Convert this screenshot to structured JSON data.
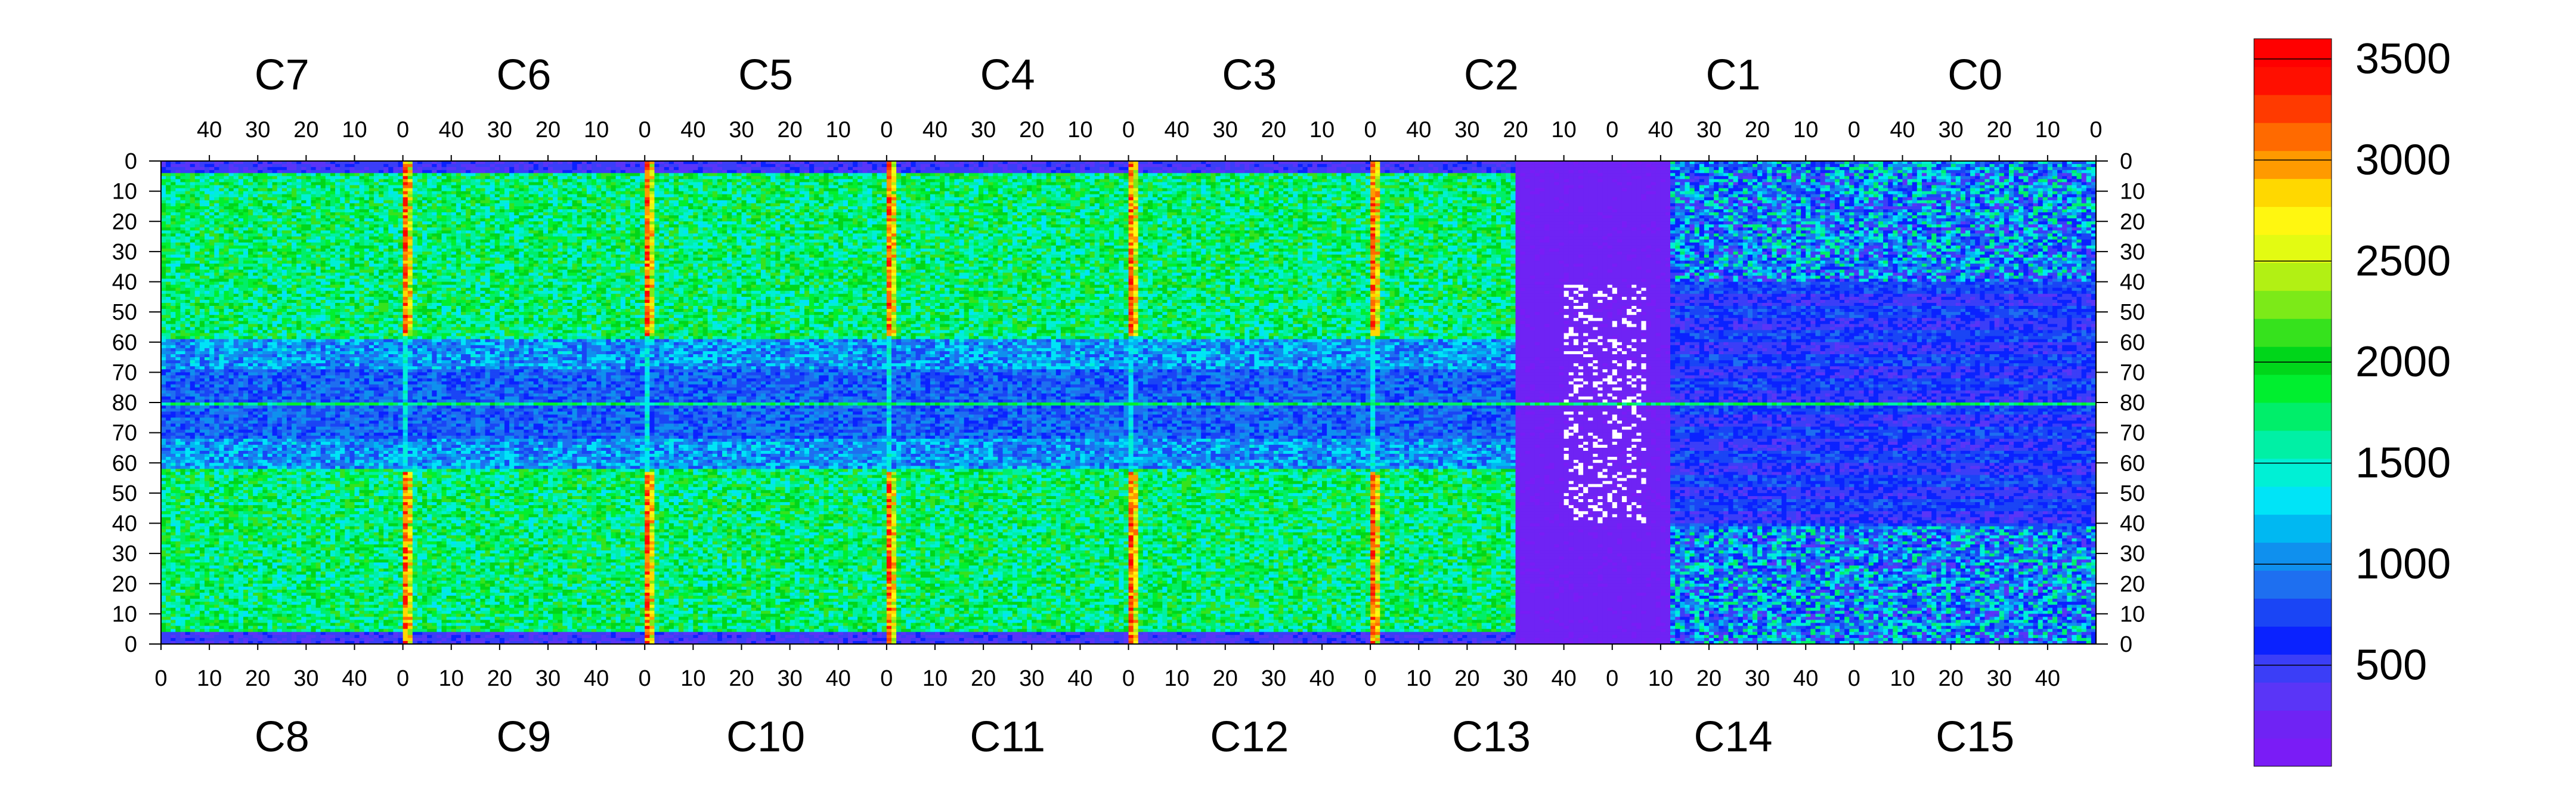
{
  "chart_data": {
    "type": "heatmap",
    "top_chips": [
      "C7",
      "C6",
      "C5",
      "C4",
      "C3",
      "C2",
      "C1",
      "C0"
    ],
    "bottom_chips": [
      "C8",
      "C9",
      "C10",
      "C11",
      "C12",
      "C13",
      "C14",
      "C15"
    ],
    "top_axis_ticks": [
      "40",
      "30",
      "20",
      "10",
      "0"
    ],
    "bottom_axis_ticks": [
      "0",
      "10",
      "20",
      "30",
      "40"
    ],
    "top_half_row_ticks": [
      "0",
      "10",
      "20",
      "30",
      "40",
      "50",
      "60",
      "70",
      "80"
    ],
    "bottom_half_row_ticks": [
      "70",
      "60",
      "50",
      "40",
      "30",
      "20",
      "10",
      "0"
    ],
    "z_range": [
      0,
      3600
    ],
    "colorbar_ticks": [
      "500",
      "1000",
      "1500",
      "2000",
      "2500",
      "3000",
      "3500"
    ],
    "colorbar_colors": [
      "#7a1cf6",
      "#6f23f4",
      "#5a35f7",
      "#3b3ef7",
      "#0a22ff",
      "#1a45f5",
      "#1e6ff0",
      "#0f90ee",
      "#00b8f2",
      "#00e4f7",
      "#00f0d5",
      "#00f0a5",
      "#00ee6a",
      "#00ef2f",
      "#00d61a",
      "#36e21d",
      "#7cea18",
      "#b2f014",
      "#e3fb12",
      "#fff710",
      "#ffd800",
      "#ff9a00",
      "#ff6a00",
      "#ff3a00",
      "#ff0f00",
      "#ff0000"
    ],
    "hot_columns_note": "high-value vertical stripes at the x=0 boundaries between adjacent chips",
    "description_values": {
      "background_level": 150,
      "typical_active_level": 1600,
      "boundary_peak_level": 3400
    }
  }
}
